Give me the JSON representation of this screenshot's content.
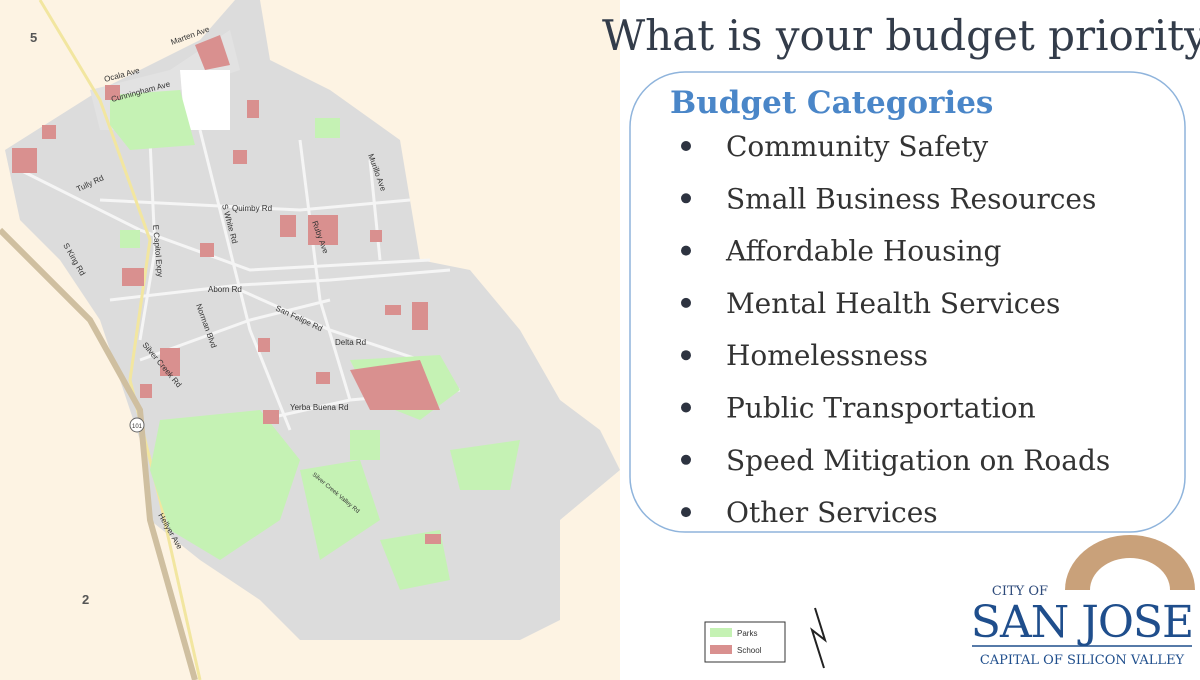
{
  "slide": {
    "title": "What is your budget priority?",
    "box": {
      "heading": "Budget Categories",
      "items": [
        "Community Safety",
        "Small Business Resources",
        "Affordable Housing",
        "Mental Health Services",
        "Homelessness",
        "Public Transportation",
        "Speed Mitigation on Roads",
        "Other Services"
      ]
    }
  },
  "map": {
    "labels": [
      "5",
      "2",
      "Ocala Ave",
      "Marten Ave",
      "Cunningham Ave",
      "Tully Rd",
      "S King Rd",
      "E Capitol Expy",
      "S White Rd",
      "Quimby Rd",
      "Ruby Ave",
      "Murillo Ave",
      "Aborn Rd",
      "Norman Blvd",
      "San Felipe Rd",
      "Delta Rd",
      "Silver Creek Rd",
      "Yerba Buena Rd",
      "Hellyer Ave",
      "Silver Creek Valley Rd",
      "101"
    ],
    "legend": [
      "Parks",
      "School"
    ]
  },
  "logo": {
    "top": "CITY OF",
    "name": "SAN JOSE",
    "tagline": "CAPITAL OF SILICON VALLEY"
  }
}
